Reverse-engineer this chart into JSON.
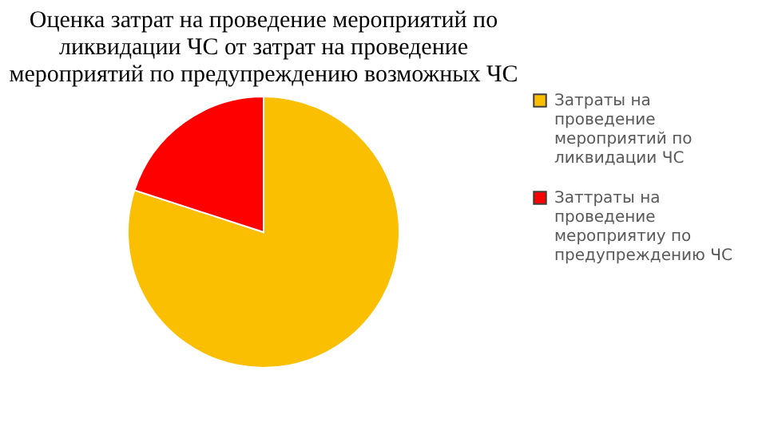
{
  "chart_data": {
    "type": "pie",
    "title": "Оценка затрат на проведение мероприятий по ликвидации ЧС от затрат на проведение мероприятий по предупреждению возможных ЧС",
    "categories": [
      "Затраты на проведение мероприятий по ликвидации ЧС",
      "Заттраты на проведение мероприятиу по предупреждению ЧС"
    ],
    "values": [
      80,
      20
    ],
    "colors": [
      "#f9bf00",
      "#ff0000"
    ],
    "legend": "right"
  }
}
